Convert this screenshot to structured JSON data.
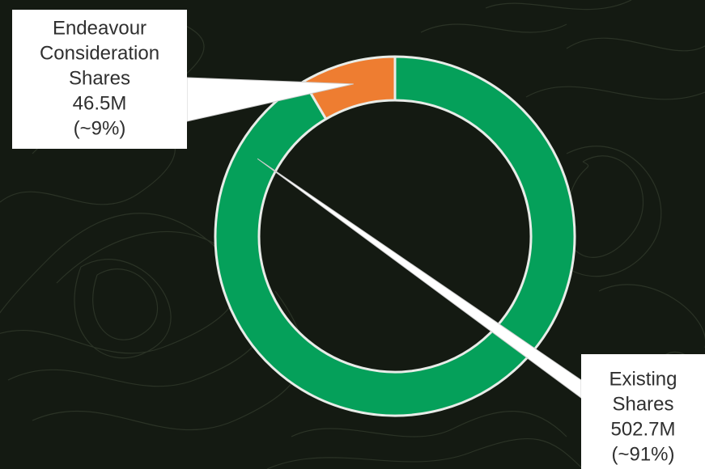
{
  "chart_data": {
    "type": "pie",
    "donut": true,
    "categories": [
      "Existing Shares",
      "Endeavour Consideration Shares"
    ],
    "values": [
      502.7,
      46.5
    ],
    "unit": "M",
    "labels": [
      {
        "category": "Existing Shares",
        "lines": [
          "Existing",
          "Shares",
          "502.7M",
          "(~91%)"
        ]
      },
      {
        "category": "Endeavour Consideration Shares",
        "lines": [
          "Endeavour",
          "Consideration",
          "Shares",
          "46.5M",
          "(~9%)"
        ]
      }
    ],
    "colors": [
      "#05a05a",
      "#ee7d31"
    ],
    "legend": "none"
  },
  "style": {
    "background": "#141a12",
    "slice_border": "#e8ece8",
    "callout_fill": "#ffffff",
    "text_color": "#2f2f2f"
  }
}
